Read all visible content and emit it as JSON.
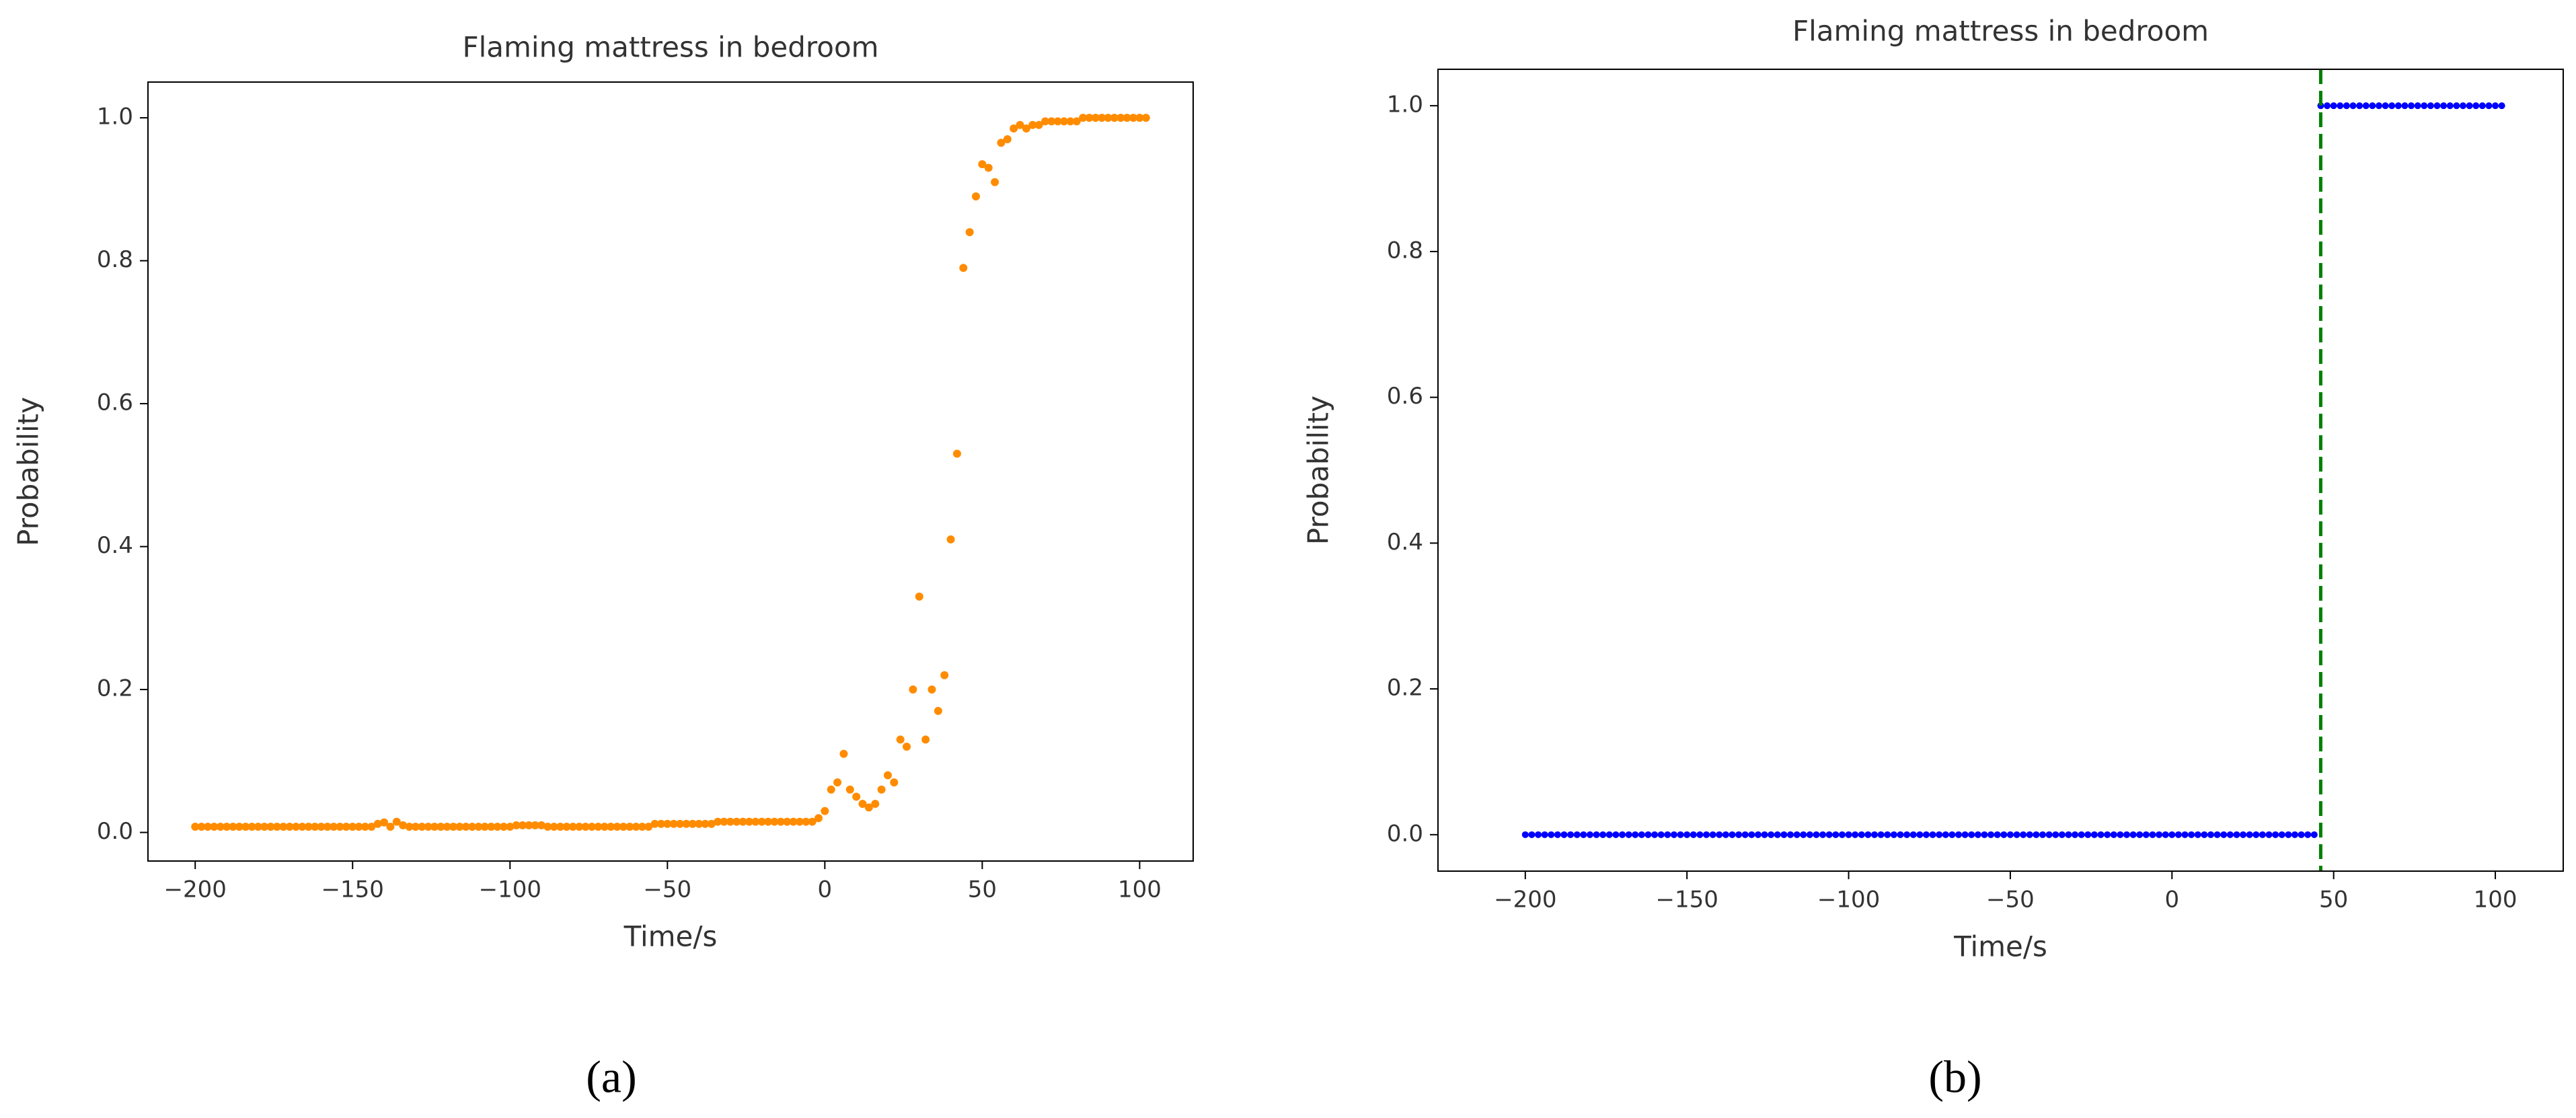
{
  "chart_data": [
    {
      "type": "scatter",
      "title": "Flaming mattress in bedroom",
      "x_label": "Time/s",
      "y_label": "Probability",
      "caption": "(a)",
      "color": "#ff8c00",
      "xlim": [
        -215,
        117
      ],
      "ylim": [
        -0.04,
        1.05
      ],
      "xticks": [
        {
          "value": -200,
          "label": "−200"
        },
        {
          "value": -150,
          "label": "−150"
        },
        {
          "value": -100,
          "label": "−100"
        },
        {
          "value": -50,
          "label": "−50"
        },
        0,
        50,
        100
      ],
      "yticks": [
        {
          "value": 0,
          "label": "0.0"
        },
        0.2,
        0.4,
        0.6,
        0.8,
        {
          "value": 1,
          "label": "1.0"
        }
      ],
      "x": [
        -200,
        -198,
        -196,
        -194,
        -192,
        -190,
        -188,
        -186,
        -184,
        -182,
        -180,
        -178,
        -176,
        -174,
        -172,
        -170,
        -168,
        -166,
        -164,
        -162,
        -160,
        -158,
        -156,
        -154,
        -152,
        -150,
        -148,
        -146,
        -144,
        -142,
        -140,
        -138,
        -136,
        -134,
        -132,
        -130,
        -128,
        -126,
        -124,
        -122,
        -120,
        -118,
        -116,
        -114,
        -112,
        -110,
        -108,
        -106,
        -104,
        -102,
        -100,
        -98,
        -96,
        -94,
        -92,
        -90,
        -88,
        -86,
        -84,
        -82,
        -80,
        -78,
        -76,
        -74,
        -72,
        -70,
        -68,
        -66,
        -64,
        -62,
        -60,
        -58,
        -56,
        -54,
        -52,
        -50,
        -48,
        -46,
        -44,
        -42,
        -40,
        -38,
        -36,
        -34,
        -32,
        -30,
        -28,
        -26,
        -24,
        -22,
        -20,
        -18,
        -16,
        -14,
        -12,
        -10,
        -8,
        -6,
        -4,
        -2,
        0,
        2,
        4,
        6,
        8,
        10,
        12,
        14,
        16,
        18,
        20,
        22,
        24,
        26,
        28,
        30,
        32,
        34,
        36,
        38,
        40,
        42,
        44,
        46,
        48,
        50,
        52,
        54,
        56,
        58,
        60,
        62,
        64,
        66,
        68,
        70,
        72,
        74,
        76,
        78,
        80,
        82,
        84,
        86,
        88,
        90,
        92,
        94,
        96,
        98,
        100,
        102
      ],
      "values": [
        0.008,
        0.008,
        0.008,
        0.008,
        0.008,
        0.008,
        0.008,
        0.008,
        0.008,
        0.008,
        0.008,
        0.008,
        0.008,
        0.008,
        0.008,
        0.008,
        0.008,
        0.008,
        0.008,
        0.008,
        0.008,
        0.008,
        0.008,
        0.008,
        0.008,
        0.008,
        0.008,
        0.008,
        0.008,
        0.012,
        0.014,
        0.008,
        0.015,
        0.01,
        0.008,
        0.008,
        0.008,
        0.008,
        0.008,
        0.008,
        0.008,
        0.008,
        0.008,
        0.008,
        0.008,
        0.008,
        0.008,
        0.008,
        0.008,
        0.008,
        0.008,
        0.01,
        0.01,
        0.01,
        0.01,
        0.01,
        0.008,
        0.008,
        0.008,
        0.008,
        0.008,
        0.008,
        0.008,
        0.008,
        0.008,
        0.008,
        0.008,
        0.008,
        0.008,
        0.008,
        0.008,
        0.008,
        0.008,
        0.012,
        0.012,
        0.012,
        0.012,
        0.012,
        0.012,
        0.012,
        0.012,
        0.012,
        0.012,
        0.015,
        0.015,
        0.015,
        0.015,
        0.015,
        0.015,
        0.015,
        0.015,
        0.015,
        0.015,
        0.015,
        0.015,
        0.015,
        0.015,
        0.015,
        0.015,
        0.02,
        0.03,
        0.06,
        0.07,
        0.11,
        0.06,
        0.05,
        0.04,
        0.035,
        0.04,
        0.06,
        0.08,
        0.07,
        0.13,
        0.12,
        0.2,
        0.33,
        0.13,
        0.2,
        0.17,
        0.22,
        0.41,
        0.53,
        0.79,
        0.84,
        0.89,
        0.935,
        0.93,
        0.91,
        0.965,
        0.97,
        0.985,
        0.99,
        0.985,
        0.99,
        0.99,
        0.995,
        0.995,
        0.995,
        0.995,
        0.995,
        0.995,
        1,
        1,
        1,
        1,
        1,
        1,
        1,
        1,
        1,
        1,
        1
      ]
    },
    {
      "type": "scatter",
      "title": "Flaming mattress in bedroom",
      "x_label": "Time/s",
      "y_label": "Probability",
      "caption": "(b)",
      "color": "#0000ff",
      "vline": 46,
      "vline_color": "#008000",
      "xlim": [
        -227,
        121
      ],
      "ylim": [
        -0.05,
        1.05
      ],
      "xticks": [
        {
          "value": -200,
          "label": "−200"
        },
        {
          "value": -150,
          "label": "−150"
        },
        {
          "value": -100,
          "label": "−100"
        },
        {
          "value": -50,
          "label": "−50"
        },
        0,
        50,
        100
      ],
      "yticks": [
        {
          "value": 0,
          "label": "0.0"
        },
        0.2,
        0.4,
        0.6,
        0.8,
        {
          "value": 1,
          "label": "1.0"
        }
      ],
      "x": [
        -200,
        -198,
        -196,
        -194,
        -192,
        -190,
        -188,
        -186,
        -184,
        -182,
        -180,
        -178,
        -176,
        -174,
        -172,
        -170,
        -168,
        -166,
        -164,
        -162,
        -160,
        -158,
        -156,
        -154,
        -152,
        -150,
        -148,
        -146,
        -144,
        -142,
        -140,
        -138,
        -136,
        -134,
        -132,
        -130,
        -128,
        -126,
        -124,
        -122,
        -120,
        -118,
        -116,
        -114,
        -112,
        -110,
        -108,
        -106,
        -104,
        -102,
        -100,
        -98,
        -96,
        -94,
        -92,
        -90,
        -88,
        -86,
        -84,
        -82,
        -80,
        -78,
        -76,
        -74,
        -72,
        -70,
        -68,
        -66,
        -64,
        -62,
        -60,
        -58,
        -56,
        -54,
        -52,
        -50,
        -48,
        -46,
        -44,
        -42,
        -40,
        -38,
        -36,
        -34,
        -32,
        -30,
        -28,
        -26,
        -24,
        -22,
        -20,
        -18,
        -16,
        -14,
        -12,
        -10,
        -8,
        -6,
        -4,
        -2,
        0,
        2,
        4,
        6,
        8,
        10,
        12,
        14,
        16,
        18,
        20,
        22,
        24,
        26,
        28,
        30,
        32,
        34,
        36,
        38,
        40,
        42,
        44,
        46,
        48,
        50,
        52,
        54,
        56,
        58,
        60,
        62,
        64,
        66,
        68,
        70,
        72,
        74,
        76,
        78,
        80,
        82,
        84,
        86,
        88,
        90,
        92,
        94,
        96,
        98,
        100,
        102
      ],
      "values": [
        0,
        0,
        0,
        0,
        0,
        0,
        0,
        0,
        0,
        0,
        0,
        0,
        0,
        0,
        0,
        0,
        0,
        0,
        0,
        0,
        0,
        0,
        0,
        0,
        0,
        0,
        0,
        0,
        0,
        0,
        0,
        0,
        0,
        0,
        0,
        0,
        0,
        0,
        0,
        0,
        0,
        0,
        0,
        0,
        0,
        0,
        0,
        0,
        0,
        0,
        0,
        0,
        0,
        0,
        0,
        0,
        0,
        0,
        0,
        0,
        0,
        0,
        0,
        0,
        0,
        0,
        0,
        0,
        0,
        0,
        0,
        0,
        0,
        0,
        0,
        0,
        0,
        0,
        0,
        0,
        0,
        0,
        0,
        0,
        0,
        0,
        0,
        0,
        0,
        0,
        0,
        0,
        0,
        0,
        0,
        0,
        0,
        0,
        0,
        0,
        0,
        0,
        0,
        0,
        0,
        0,
        0,
        0,
        0,
        0,
        0,
        0,
        0,
        0,
        0,
        0,
        0,
        0,
        0,
        0,
        0,
        0,
        0,
        1,
        1,
        1,
        1,
        1,
        1,
        1,
        1,
        1,
        1,
        1,
        1,
        1,
        1,
        1,
        1,
        1,
        1,
        1,
        1,
        1,
        1,
        1,
        1,
        1,
        1,
        1,
        1,
        1
      ]
    }
  ]
}
